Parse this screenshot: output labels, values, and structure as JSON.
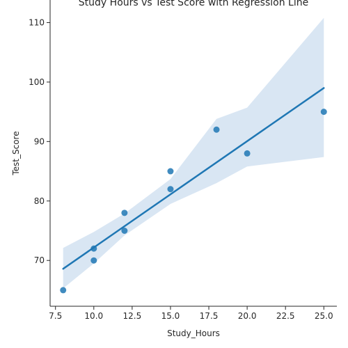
{
  "chart_data": {
    "type": "scatter",
    "title": "Study Hours vs Test Score with Regression Line",
    "xlabel": "Study_Hours",
    "ylabel": "Test_Score",
    "xlim": [
      7.15,
      25.85
    ],
    "ylim": [
      62.3,
      113.8
    ],
    "x_ticks": [
      "7.5",
      "10.0",
      "12.5",
      "15.0",
      "17.5",
      "20.0",
      "22.5",
      "25.0"
    ],
    "y_ticks": [
      "70",
      "80",
      "90",
      "100",
      "110"
    ],
    "points": [
      {
        "x": 8,
        "y": 65
      },
      {
        "x": 10,
        "y": 70
      },
      {
        "x": 10,
        "y": 72
      },
      {
        "x": 12,
        "y": 75
      },
      {
        "x": 12,
        "y": 78
      },
      {
        "x": 15,
        "y": 82
      },
      {
        "x": 15,
        "y": 85
      },
      {
        "x": 18,
        "y": 92
      },
      {
        "x": 20,
        "y": 88
      },
      {
        "x": 25,
        "y": 95
      }
    ],
    "regression": {
      "x_start": 8,
      "y_start": 68.6,
      "x_end": 25,
      "y_end": 99.0
    },
    "confidence_band": {
      "x": [
        8,
        10,
        12,
        15,
        18,
        20,
        25
      ],
      "lower": [
        65.3,
        69.5,
        74.2,
        79.5,
        83.0,
        85.8,
        87.4
      ],
      "upper": [
        72.1,
        74.8,
        77.9,
        83.7,
        93.8,
        95.7,
        110.8
      ]
    },
    "colors": {
      "point": "#1f77b4",
      "line": "#1f77b4",
      "band": "#d9e6f3",
      "axis": "#262626"
    }
  }
}
